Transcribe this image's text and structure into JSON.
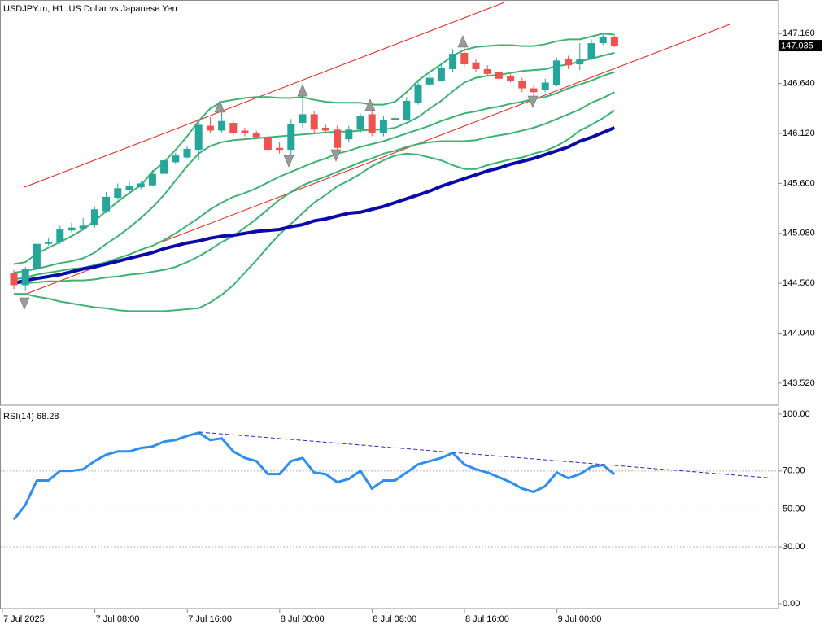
{
  "chart_data": [
    {
      "type": "candlestick",
      "title": "USDJPY.m, H1:  US Dollar vs Japanese Yen",
      "categories": [
        "7 Jul 2025",
        null,
        null,
        null,
        null,
        null,
        null,
        null,
        "7 Jul 08:00",
        null,
        null,
        null,
        null,
        null,
        null,
        null,
        "7 Jul 16:00",
        null,
        null,
        null,
        null,
        null,
        null,
        null,
        "8 Jul 00:00",
        null,
        null,
        null,
        null,
        null,
        null,
        null,
        "8 Jul 08:00",
        null,
        null,
        null,
        null,
        null,
        null,
        null,
        "8 Jul 16:00",
        null,
        null,
        null,
        null,
        null,
        null,
        null,
        "9 Jul 00:00",
        null,
        null,
        null,
        null
      ],
      "open": [
        144.67,
        144.54,
        144.71,
        144.97,
        144.99,
        145.11,
        145.13,
        145.17,
        145.31,
        145.45,
        145.53,
        145.56,
        145.58,
        145.7,
        145.82,
        145.87,
        145.95,
        146.2,
        146.15,
        146.23,
        146.15,
        146.12,
        146.08,
        145.97,
        145.95,
        146.23,
        146.32,
        146.18,
        146.16,
        146.06,
        146.16,
        146.32,
        146.12,
        146.26,
        146.26,
        146.44,
        146.63,
        146.67,
        146.79,
        146.96,
        146.86,
        146.79,
        146.76,
        146.72,
        146.67,
        146.59,
        146.57,
        146.62,
        146.9,
        146.84,
        146.9,
        147.06,
        147.12
      ],
      "high": [
        144.7,
        144.73,
        145.0,
        145.03,
        145.16,
        145.19,
        145.24,
        145.36,
        145.51,
        145.6,
        145.63,
        145.63,
        145.74,
        145.87,
        145.92,
        145.99,
        146.27,
        146.29,
        146.42,
        146.27,
        146.18,
        146.15,
        146.11,
        146.03,
        146.27,
        146.52,
        146.35,
        146.21,
        146.2,
        146.2,
        146.33,
        146.44,
        146.3,
        146.33,
        146.5,
        146.67,
        146.74,
        146.84,
        147.0,
        147.06,
        146.9,
        146.83,
        146.78,
        146.74,
        146.7,
        146.62,
        146.69,
        146.91,
        146.93,
        147.06,
        147.1,
        147.16,
        147.14
      ],
      "low": [
        144.5,
        144.48,
        144.7,
        144.95,
        144.97,
        145.09,
        145.11,
        145.14,
        145.29,
        145.43,
        145.51,
        145.54,
        145.57,
        145.69,
        145.8,
        145.86,
        145.84,
        146.12,
        146.13,
        146.09,
        146.09,
        146.06,
        145.92,
        145.91,
        145.86,
        146.18,
        146.12,
        146.13,
        145.86,
        146.03,
        146.13,
        146.09,
        146.09,
        146.23,
        146.25,
        146.42,
        146.61,
        146.66,
        146.76,
        146.81,
        146.76,
        146.72,
        146.67,
        146.65,
        146.55,
        146.49,
        146.55,
        146.61,
        146.79,
        146.78,
        146.88,
        147.04,
        147.02
      ],
      "close": [
        144.54,
        144.71,
        144.97,
        144.99,
        145.12,
        145.14,
        145.16,
        145.33,
        145.46,
        145.55,
        145.57,
        145.6,
        145.7,
        145.84,
        145.89,
        145.96,
        146.21,
        146.15,
        146.25,
        146.12,
        146.12,
        146.08,
        145.95,
        145.95,
        146.22,
        146.32,
        146.16,
        146.15,
        145.97,
        146.16,
        146.3,
        146.12,
        146.26,
        146.28,
        146.46,
        146.63,
        146.7,
        146.8,
        146.95,
        146.84,
        146.79,
        146.74,
        146.69,
        146.67,
        146.59,
        146.55,
        146.65,
        146.88,
        146.83,
        146.9,
        147.06,
        147.13,
        147.035
      ],
      "up_color": "#26a69a",
      "down_color": "#ef5350",
      "series": [
        {
          "color": "#3cb371",
          "width": 2,
          "values": [
            144.76,
            144.78,
            144.87,
            144.93,
            144.99,
            145.05,
            145.12,
            145.21,
            145.31,
            145.41,
            145.5,
            145.58,
            145.72,
            145.82,
            145.95,
            146.09,
            146.25,
            146.38,
            146.45,
            146.47,
            146.49,
            146.5,
            146.5,
            146.49,
            146.49,
            146.5,
            146.47,
            146.45,
            146.44,
            146.44,
            146.44,
            146.42,
            146.42,
            146.45,
            146.55,
            146.67,
            146.76,
            146.84,
            146.93,
            146.99,
            147.02,
            147.03,
            147.04,
            147.04,
            147.03,
            147.03,
            147.05,
            147.08,
            147.1,
            147.1,
            147.13,
            147.16,
            147.15
          ]
        },
        {
          "color": "#3cb371",
          "width": 2,
          "values": [
            144.67,
            144.69,
            144.71,
            144.74,
            144.77,
            144.79,
            144.82,
            144.88,
            144.97,
            145.05,
            145.14,
            145.24,
            145.35,
            145.48,
            145.63,
            145.78,
            145.91,
            145.99,
            146.03,
            146.05,
            146.06,
            146.07,
            146.08,
            146.09,
            146.1,
            146.11,
            146.12,
            146.13,
            146.14,
            146.14,
            146.15,
            146.16,
            146.16,
            146.18,
            146.23,
            146.29,
            146.38,
            146.46,
            146.56,
            146.65,
            146.7,
            146.72,
            146.73,
            146.75,
            146.77,
            146.78,
            146.79,
            146.82,
            146.84,
            146.87,
            146.9,
            146.93,
            146.96
          ]
        },
        {
          "color": "#3cb371",
          "width": 2,
          "values": [
            144.6,
            144.62,
            144.65,
            144.67,
            144.69,
            144.71,
            144.72,
            144.75,
            144.78,
            144.82,
            144.86,
            144.91,
            144.95,
            145.01,
            145.08,
            145.16,
            145.24,
            145.33,
            145.4,
            145.46,
            145.5,
            145.55,
            145.61,
            145.67,
            145.72,
            145.77,
            145.82,
            145.86,
            145.91,
            145.94,
            145.98,
            146.01,
            146.04,
            146.08,
            146.12,
            146.16,
            146.2,
            146.25,
            146.29,
            146.33,
            146.35,
            146.38,
            146.4,
            146.43,
            146.45,
            146.48,
            146.5,
            146.54,
            146.59,
            146.63,
            146.67,
            146.72,
            146.76
          ]
        },
        {
          "color": "#3cb371",
          "width": 2,
          "values": [
            144.56,
            144.56,
            144.57,
            144.58,
            144.58,
            144.59,
            144.59,
            144.6,
            144.62,
            144.63,
            144.65,
            144.66,
            144.68,
            144.7,
            144.73,
            144.78,
            144.84,
            144.91,
            144.99,
            145.05,
            145.14,
            145.23,
            145.33,
            145.43,
            145.51,
            145.58,
            145.63,
            145.67,
            145.72,
            145.77,
            145.82,
            145.86,
            145.91,
            145.94,
            145.98,
            146.01,
            146.03,
            146.04,
            146.04,
            146.04,
            146.05,
            146.08,
            146.1,
            146.12,
            146.15,
            146.18,
            146.22,
            146.27,
            146.32,
            146.37,
            146.44,
            146.49,
            146.55
          ]
        },
        {
          "color": "#3cb371",
          "width": 2,
          "values": [
            144.45,
            144.45,
            144.42,
            144.4,
            144.37,
            144.35,
            144.33,
            144.31,
            144.3,
            144.28,
            144.27,
            144.27,
            144.27,
            144.27,
            144.28,
            144.29,
            144.3,
            144.36,
            144.44,
            144.54,
            144.67,
            144.8,
            144.94,
            145.07,
            145.18,
            145.29,
            145.4,
            145.48,
            145.57,
            145.63,
            145.7,
            145.78,
            145.84,
            145.89,
            145.91,
            145.9,
            145.87,
            145.84,
            145.79,
            145.75,
            145.75,
            145.79,
            145.82,
            145.85,
            145.87,
            145.91,
            145.94,
            145.99,
            146.06,
            146.15,
            146.21,
            146.28,
            146.36
          ]
        },
        {
          "color": "#0a0aa8",
          "width": 4,
          "values": [
            144.56,
            144.59,
            144.61,
            144.63,
            144.65,
            144.68,
            144.71,
            144.73,
            144.76,
            144.79,
            144.82,
            144.85,
            144.88,
            144.92,
            144.95,
            144.98,
            145.0,
            145.03,
            145.05,
            145.06,
            145.08,
            145.1,
            145.11,
            145.12,
            145.15,
            145.17,
            145.21,
            145.23,
            145.26,
            145.29,
            145.3,
            145.33,
            145.36,
            145.4,
            145.44,
            145.48,
            145.52,
            145.57,
            145.61,
            145.65,
            145.69,
            145.73,
            145.76,
            145.8,
            145.83,
            145.86,
            145.9,
            145.94,
            145.98,
            146.04,
            146.08,
            146.13,
            146.18
          ]
        }
      ],
      "last_price": 147.035,
      "ylim": [
        143.29,
        147.51
      ],
      "yticks": [
        {
          "value": 143.52,
          "label": "143.520"
        },
        {
          "value": 144.04,
          "label": "144.040"
        },
        {
          "value": 144.56,
          "label": "144.560"
        },
        {
          "value": 145.08,
          "label": "145.080"
        },
        {
          "value": 145.6,
          "label": "145.600"
        },
        {
          "value": 146.12,
          "label": "146.120"
        },
        {
          "value": 146.64,
          "label": "146.640"
        },
        {
          "value": 147.16,
          "label": "147.160"
        }
      ]
    },
    {
      "type": "line",
      "title": "RSI(14) 68.28",
      "series": [
        {
          "color": "#2e8ff0",
          "width": 3,
          "values": [
            44.4,
            52.1,
            65.0,
            65.0,
            70.1,
            70.1,
            70.9,
            75.2,
            78.6,
            80.3,
            80.3,
            82.1,
            82.9,
            85.5,
            86.3,
            88.5,
            90.2,
            86.3,
            87.2,
            80.3,
            76.9,
            75.2,
            68.4,
            68.4,
            75.2,
            76.9,
            69.2,
            68.4,
            64.1,
            65.8,
            70.1,
            60.7,
            65.0,
            65.0,
            69.2,
            73.5,
            75.2,
            76.9,
            79.5,
            73.5,
            70.9,
            69.2,
            66.7,
            64.1,
            60.7,
            59.0,
            62.0,
            69.2,
            66.2,
            68.4,
            72.2,
            73.1,
            68.28
          ]
        }
      ],
      "levels": [
        70,
        50,
        30
      ],
      "ylim": [
        -2.6,
        103.4
      ],
      "yticks": [
        {
          "value": 0,
          "label": "0.00"
        },
        {
          "value": 30,
          "label": "30.00"
        },
        {
          "value": 50,
          "label": "50.00"
        },
        {
          "value": 70,
          "label": "70.00"
        },
        {
          "value": 100,
          "label": "100.00"
        }
      ]
    }
  ]
}
